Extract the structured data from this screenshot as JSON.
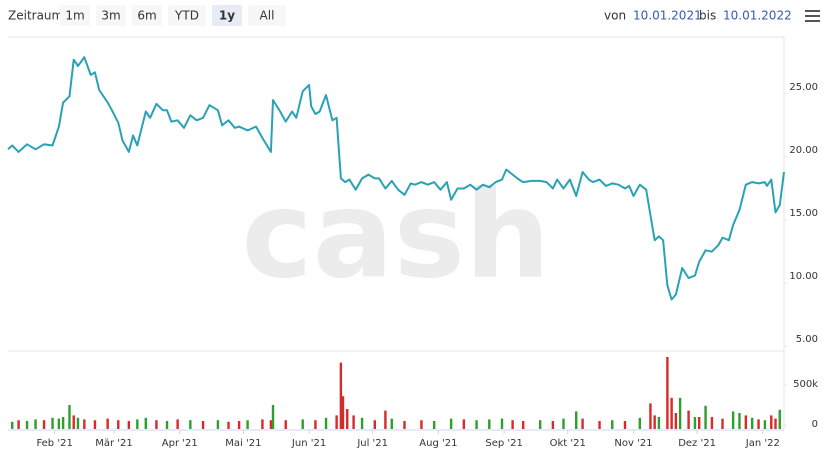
{
  "toolbar": {
    "label": "Zeitraum",
    "buttons": [
      "1m",
      "3m",
      "6m",
      "YTD",
      "1y",
      "All"
    ],
    "active": 4,
    "from_label": "von",
    "from": "10.01.2021",
    "to_label": "bis",
    "to": "10.01.2022"
  },
  "chart_data": [
    {
      "type": "line",
      "watermark": "cash",
      "color": "#2aa2b5",
      "x": [
        0,
        2,
        5,
        9,
        13,
        17,
        21,
        24,
        26,
        29,
        31,
        33,
        36,
        39,
        41,
        43,
        47,
        49,
        52,
        54,
        57,
        59,
        61,
        65,
        67,
        70,
        73,
        75,
        77,
        80,
        83,
        86,
        89,
        92,
        95,
        99,
        101,
        104,
        107,
        109,
        113,
        117,
        120,
        124,
        125,
        128,
        131,
        134,
        136,
        139,
        142,
        143,
        145,
        147,
        150,
        153,
        155,
        157,
        159,
        161,
        164,
        167,
        170,
        173,
        175,
        178,
        181,
        184,
        187,
        190,
        192,
        195,
        198,
        201,
        204,
        207,
        209,
        212,
        215,
        218,
        221,
        224,
        227,
        230,
        233,
        235,
        238,
        241,
        243,
        247,
        251,
        254,
        257,
        259,
        262,
        265,
        268,
        271,
        274,
        276,
        279,
        282,
        285,
        288,
        291,
        293,
        295,
        298,
        301,
        303,
        305,
        307,
        309,
        311,
        313,
        315,
        318,
        321,
        324,
        326,
        329,
        332,
        335,
        337,
        340,
        342,
        345,
        348,
        351,
        354,
        357,
        358,
        360,
        362,
        364,
        366
      ],
      "values": [
        20.6,
        20.9,
        20.4,
        21.0,
        20.6,
        21.0,
        20.9,
        22.4,
        24.3,
        24.8,
        27.7,
        27.2,
        27.9,
        26.5,
        26.7,
        25.3,
        24.3,
        23.7,
        22.7,
        21.3,
        20.4,
        21.7,
        20.9,
        23.6,
        23.1,
        24.2,
        23.7,
        23.7,
        22.8,
        22.9,
        22.3,
        23.3,
        22.9,
        23.1,
        24.1,
        23.7,
        22.5,
        22.9,
        22.3,
        22.4,
        22.1,
        22.4,
        21.5,
        20.4,
        24.5,
        23.7,
        22.8,
        23.6,
        23.1,
        25.2,
        25.7,
        24.0,
        23.4,
        23.6,
        24.9,
        22.9,
        23.1,
        18.3,
        18.0,
        18.2,
        17.4,
        18.3,
        18.6,
        18.3,
        18.3,
        17.5,
        18.1,
        17.4,
        17.0,
        17.9,
        17.8,
        18.0,
        17.8,
        18.0,
        17.4,
        18.0,
        16.6,
        17.5,
        17.5,
        17.8,
        17.4,
        17.8,
        17.6,
        18.0,
        18.2,
        19.0,
        18.6,
        18.2,
        18.0,
        18.1,
        18.1,
        18.0,
        17.5,
        18.2,
        17.5,
        18.2,
        16.9,
        18.8,
        18.2,
        18.0,
        18.2,
        17.7,
        17.9,
        17.8,
        17.5,
        17.7,
        16.9,
        17.8,
        17.4,
        15.4,
        13.4,
        13.7,
        13.4,
        9.8,
        8.7,
        9.1,
        11.2,
        10.4,
        10.6,
        11.7,
        12.6,
        12.5,
        13.0,
        13.6,
        13.4,
        14.6,
        15.8,
        17.8,
        18.0,
        17.9,
        18.0,
        17.7,
        18.2,
        15.6,
        16.2,
        18.8
      ],
      "xlim": [
        0,
        366
      ],
      "ylim": [
        4.7,
        29.5
      ],
      "yticks": [
        {
          "value": 5,
          "label": "5.00"
        },
        {
          "value": 10,
          "label": "10.00"
        },
        {
          "value": 15,
          "label": "15.00"
        },
        {
          "value": 20,
          "label": "20.00"
        },
        {
          "value": 25,
          "label": "25.00"
        }
      ],
      "grid": false
    },
    {
      "type": "bar",
      "x": [
        2,
        5,
        9,
        13,
        17,
        21,
        24,
        26,
        29,
        31,
        33,
        36,
        41,
        47,
        52,
        57,
        61,
        65,
        70,
        75,
        80,
        86,
        92,
        99,
        104,
        109,
        113,
        120,
        124,
        125,
        131,
        139,
        145,
        150,
        155,
        157,
        158,
        160,
        163,
        167,
        173,
        178,
        181,
        187,
        195,
        201,
        209,
        215,
        221,
        227,
        233,
        238,
        243,
        251,
        257,
        262,
        268,
        271,
        279,
        285,
        291,
        298,
        303,
        305,
        307,
        311,
        313,
        315,
        317,
        321,
        324,
        326,
        329,
        332,
        337,
        342,
        345,
        348,
        351,
        354,
        357,
        360,
        362,
        364
      ],
      "values": [
        40000,
        60000,
        50000,
        70000,
        60000,
        90000,
        80000,
        100000,
        250000,
        120000,
        90000,
        70000,
        60000,
        80000,
        60000,
        50000,
        70000,
        90000,
        60000,
        50000,
        70000,
        60000,
        50000,
        60000,
        40000,
        50000,
        60000,
        70000,
        60000,
        250000,
        60000,
        70000,
        60000,
        90000,
        120000,
        780000,
        360000,
        200000,
        120000,
        90000,
        60000,
        180000,
        80000,
        50000,
        60000,
        50000,
        80000,
        70000,
        60000,
        70000,
        80000,
        60000,
        50000,
        60000,
        50000,
        80000,
        170000,
        80000,
        50000,
        60000,
        50000,
        90000,
        270000,
        120000,
        100000,
        850000,
        340000,
        150000,
        340000,
        180000,
        100000,
        100000,
        240000,
        100000,
        80000,
        170000,
        150000,
        120000,
        90000,
        70000,
        60000,
        120000,
        80000,
        190000
      ],
      "colors": [
        "#2e9e2e",
        "#d62b2b",
        "#2e9e2e",
        "#2e9e2e",
        "#d62b2b",
        "#2e9e2e",
        "#2e9e2e",
        "#2e9e2e",
        "#2e9e2e",
        "#d62b2b",
        "#2e9e2e",
        "#d62b2b",
        "#d62b2b",
        "#d62b2b",
        "#d62b2b",
        "#d62b2b",
        "#2e9e2e",
        "#2e9e2e",
        "#d62b2b",
        "#2e9e2e",
        "#d62b2b",
        "#2e9e2e",
        "#d62b2b",
        "#2e9e2e",
        "#d62b2b",
        "#d62b2b",
        "#2e9e2e",
        "#d62b2b",
        "#d62b2b",
        "#2e9e2e",
        "#d62b2b",
        "#2e9e2e",
        "#d62b2b",
        "#2e9e2e",
        "#d62b2b",
        "#d62b2b",
        "#d62b2b",
        "#d62b2b",
        "#d62b2b",
        "#2e9e2e",
        "#d62b2b",
        "#d62b2b",
        "#2e9e2e",
        "#d62b2b",
        "#d62b2b",
        "#2e9e2e",
        "#2e9e2e",
        "#d62b2b",
        "#2e9e2e",
        "#2e9e2e",
        "#2e9e2e",
        "#d62b2b",
        "#d62b2b",
        "#2e9e2e",
        "#d62b2b",
        "#2e9e2e",
        "#2e9e2e",
        "#d62b2b",
        "#d62b2b",
        "#2e9e2e",
        "#d62b2b",
        "#2e9e2e",
        "#d62b2b",
        "#d62b2b",
        "#2e9e2e",
        "#d62b2b",
        "#d62b2b",
        "#d62b2b",
        "#2e9e2e",
        "#d62b2b",
        "#2e9e2e",
        "#d62b2b",
        "#2e9e2e",
        "#d62b2b",
        "#d62b2b",
        "#2e9e2e",
        "#2e9e2e",
        "#d62b2b",
        "#2e9e2e",
        "#d62b2b",
        "#2e9e2e",
        "#d62b2b",
        "#d62b2b",
        "#2e9e2e"
      ],
      "xlim": [
        0,
        366
      ],
      "ylim": [
        0,
        900000
      ],
      "yticks": [
        0,
        {
          "value": 500000,
          "label": "500k"
        }
      ],
      "xticks": [
        {
          "value": 22,
          "label": "Feb '21"
        },
        {
          "value": 50,
          "label": "Mär '21"
        },
        {
          "value": 81,
          "label": "Apr '21"
        },
        {
          "value": 111,
          "label": "Mai '21"
        },
        {
          "value": 142,
          "label": "Jun '21"
        },
        {
          "value": 172,
          "label": "Jul '21"
        },
        {
          "value": 203,
          "label": "Aug '21"
        },
        {
          "value": 234,
          "label": "Sep '21"
        },
        {
          "value": 264,
          "label": "Okt '21"
        },
        {
          "value": 295,
          "label": "Nov '21"
        },
        {
          "value": 325,
          "label": "Dez '21"
        },
        {
          "value": 356,
          "label": "Jan '22"
        }
      ]
    }
  ]
}
